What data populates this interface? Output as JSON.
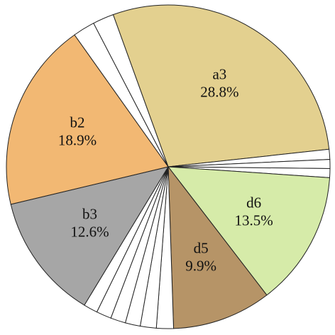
{
  "chart_data": {
    "type": "pie",
    "categories": [
      "a3",
      null,
      null,
      null,
      "d6",
      "d5",
      null,
      null,
      null,
      null,
      null,
      null,
      "b3",
      "b2",
      null,
      null
    ],
    "values": [
      28.8,
      1.0,
      0.9,
      0.9,
      13.5,
      9.9,
      1.7,
      1.6,
      1.5,
      1.5,
      1.5,
      1.4,
      12.6,
      18.9,
      2.2,
      2.1
    ],
    "value_labels": [
      "28.8%",
      null,
      null,
      null,
      "13.5%",
      "9.9%",
      null,
      null,
      null,
      null,
      null,
      null,
      "12.6%",
      "18.9%",
      null,
      null
    ],
    "colors": [
      "#e3d08f",
      "#ffffff",
      "#ffffff",
      "#ffffff",
      "#d6eba9",
      "#b69467",
      "#ffffff",
      "#ffffff",
      "#ffffff",
      "#ffffff",
      "#ffffff",
      "#ffffff",
      "#a6a6a6",
      "#f2b873",
      "#ffffff",
      "#ffffff"
    ]
  }
}
